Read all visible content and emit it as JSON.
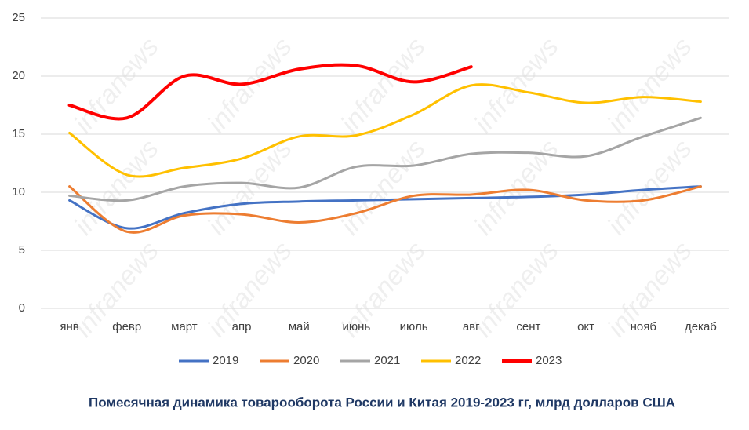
{
  "chart_data": {
    "type": "line",
    "title": "Помесячная динамика товарооборота России и Китая 2019-2023 гг, млрд долларов США",
    "watermark": "infranews",
    "categories": [
      "янв",
      "февр",
      "март",
      "апр",
      "май",
      "июнь",
      "июль",
      "авг",
      "сент",
      "окт",
      "нояб",
      "декаб"
    ],
    "series": [
      {
        "name": "2019",
        "color": "#4472c4",
        "values": [
          9.3,
          6.9,
          8.2,
          9.0,
          9.2,
          9.3,
          9.4,
          9.5,
          9.6,
          9.8,
          10.2,
          10.5
        ]
      },
      {
        "name": "2020",
        "color": "#ed7d31",
        "values": [
          10.5,
          6.6,
          8.0,
          8.1,
          7.4,
          8.2,
          9.7,
          9.8,
          10.2,
          9.3,
          9.3,
          10.5
        ]
      },
      {
        "name": "2021",
        "color": "#a5a5a5",
        "values": [
          9.7,
          9.3,
          10.5,
          10.8,
          10.4,
          12.2,
          12.3,
          13.3,
          13.4,
          13.1,
          14.8,
          16.4
        ]
      },
      {
        "name": "2022",
        "color": "#ffc000",
        "values": [
          15.1,
          11.5,
          12.1,
          12.9,
          14.8,
          14.9,
          16.7,
          19.2,
          18.6,
          17.7,
          18.2,
          17.8
        ]
      },
      {
        "name": "2023",
        "color": "#ff0000",
        "values": [
          17.5,
          16.4,
          20.0,
          19.3,
          20.6,
          20.9,
          19.5,
          20.8,
          null,
          null,
          null,
          null
        ]
      }
    ],
    "ylim": [
      0,
      25
    ],
    "yticks": [
      0,
      5,
      10,
      15,
      20,
      25
    ],
    "grid": true,
    "legend": "bottom"
  }
}
